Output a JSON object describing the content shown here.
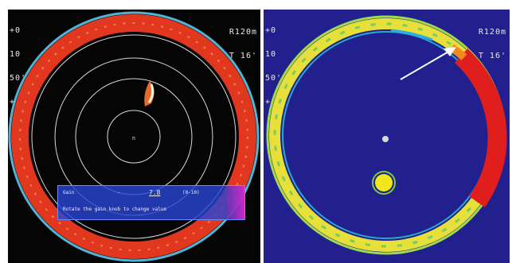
{
  "left_display": {
    "readout_left": [
      "+0",
      "10",
      "50'",
      "+"
    ],
    "readout_right": [
      "R120m",
      "T 16'"
    ],
    "center_marker": "n",
    "gain_dialog": {
      "label": "Gain",
      "scale_mark": "-",
      "value": "7.8",
      "range": "(0-10)",
      "hint": "Rotate the gain knob to change value"
    },
    "colors": {
      "background": "#050505",
      "ring": "#e1371f",
      "dialog": "#2846d2"
    }
  },
  "right_display": {
    "readout_left": [
      "+0",
      "10",
      "50'",
      "+"
    ],
    "readout_right": [
      "R120m",
      "T 16'"
    ],
    "colors": {
      "background": "#22208e",
      "ring": "#e8e03a",
      "echo": "#e01e1e",
      "arrow": "#ffffff"
    }
  }
}
